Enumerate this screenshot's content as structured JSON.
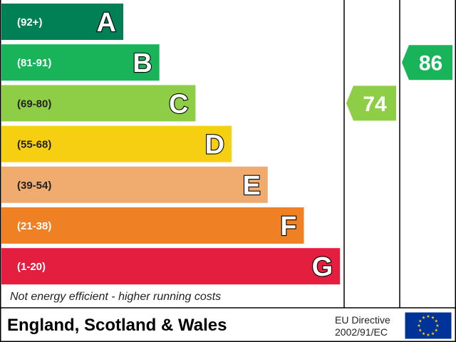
{
  "chart_data": {
    "type": "bar",
    "bands": [
      {
        "range": "(92+)",
        "letter": "A",
        "color": "#008054",
        "rank": 1
      },
      {
        "range": "(81-91)",
        "letter": "B",
        "color": "#19b459",
        "rank": 2
      },
      {
        "range": "(69-80)",
        "letter": "C",
        "color": "#8dce46",
        "rank": 3
      },
      {
        "range": "(55-68)",
        "letter": "D",
        "color": "#f6cf12",
        "rank": 4
      },
      {
        "range": "(39-54)",
        "letter": "E",
        "color": "#f0ac6f",
        "rank": 5
      },
      {
        "range": "(21-38)",
        "letter": "F",
        "color": "#ef8023",
        "rank": 6
      },
      {
        "range": "(1-20)",
        "letter": "G",
        "color": "#e41e3f",
        "rank": 7
      }
    ],
    "ratings": [
      {
        "value": 74,
        "band": "C",
        "color": "#8dce46",
        "column": 1
      },
      {
        "value": 86,
        "band": "B",
        "color": "#19b459",
        "column": 2
      }
    ],
    "bottom_note": "Not energy efficient - higher running costs",
    "footer": {
      "region": "England, Scotland & Wales",
      "directive_line1": "EU Directive",
      "directive_line2": "2002/91/EC"
    },
    "eu_flag": {
      "background": "#003399",
      "stars": "#ffcc00"
    }
  }
}
